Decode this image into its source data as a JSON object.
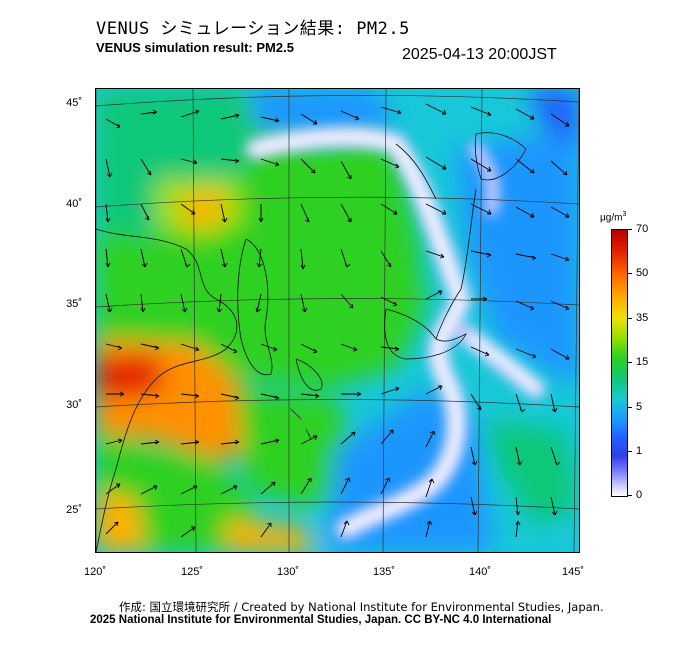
{
  "title_jp": "VENUS シミュレーション結果: PM2.5",
  "title_en": "VENUS simulation result: PM2.5",
  "timestamp": "2025-04-13 20:00JST",
  "lat_labels": [
    "45˚",
    "40˚",
    "35˚",
    "30˚",
    "25˚"
  ],
  "lon_labels": [
    "120˚",
    "125˚",
    "130˚",
    "135˚",
    "140˚",
    "145˚"
  ],
  "colorbar": {
    "unit_base": "μg/m",
    "unit_exp": "3",
    "ticks": [
      "70",
      "50",
      "35",
      "15",
      "5",
      "1",
      "0"
    ],
    "colors": {
      "max": "#b40000",
      "high": "#ff6a00",
      "mid": "#f0e000",
      "low_mid": "#2dd020",
      "low": "#18c8d8",
      "very_low": "#2060ff",
      "min": "#ffffff"
    }
  },
  "credit_jp": "作成: 国立環境研究所 / Created by National Institute for Environmental Studies, Japan.",
  "credit_en": "2025 National Institute for Environmental Studies, Japan. CC BY-NC 4.0 International"
}
